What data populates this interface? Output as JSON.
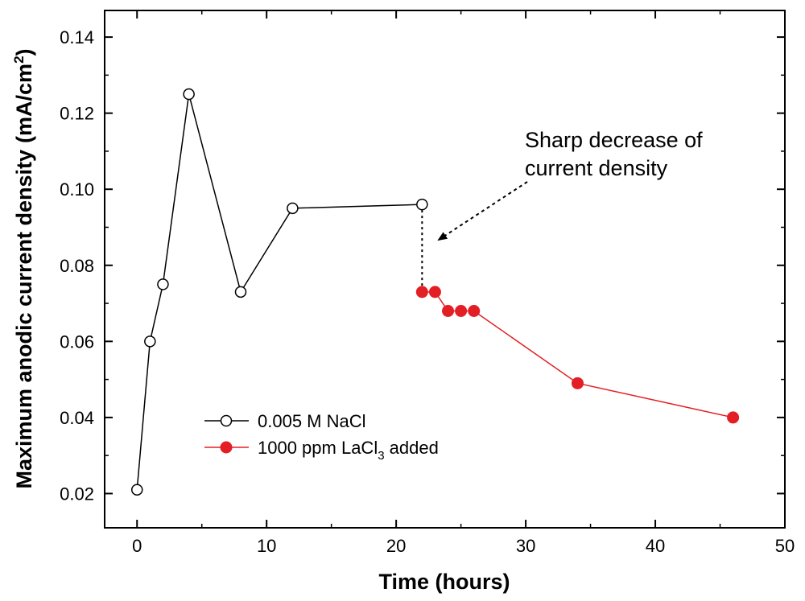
{
  "chart_data": {
    "type": "line",
    "xlabel": "Time (hours)",
    "ylabel": "Maximum anodic current density",
    "ylabel_unit_prefix": "(mA/cm",
    "ylabel_unit_sup": "2",
    "ylabel_unit_suffix": ")",
    "xlim": [
      -2.5,
      50
    ],
    "ylim": [
      0.011,
      0.147
    ],
    "x_ticks": [
      0,
      10,
      20,
      30,
      40,
      50
    ],
    "x_tick_labels": [
      "0",
      "10",
      "20",
      "30",
      "40",
      "50"
    ],
    "y_ticks": [
      0.02,
      0.04,
      0.06,
      0.08,
      0.1,
      0.12,
      0.14
    ],
    "y_tick_labels": [
      "0.02",
      "0.04",
      "0.06",
      "0.08",
      "0.10",
      "0.12",
      "0.14"
    ],
    "series": [
      {
        "name": "0.005 M NaCl",
        "marker": "open-circle",
        "color": "#000000",
        "x": [
          0,
          1,
          2,
          4,
          8,
          12,
          22
        ],
        "y": [
          0.021,
          0.06,
          0.075,
          0.125,
          0.073,
          0.095,
          0.096
        ]
      },
      {
        "name": "1000 ppm LaCl3 added",
        "legend_prefix": "1000 ppm LaCl",
        "legend_sub": "3",
        "legend_suffix": " added",
        "marker": "filled-circle",
        "color": "#e31e24",
        "x": [
          22,
          23,
          24,
          25,
          26,
          34,
          46
        ],
        "y": [
          0.073,
          0.073,
          0.068,
          0.068,
          0.068,
          0.049,
          0.04
        ]
      }
    ],
    "connector": {
      "x": [
        22,
        22
      ],
      "y": [
        0.096,
        0.073
      ],
      "style": "dotted"
    },
    "annotation": {
      "lines": [
        "Sharp decrease of",
        "current density"
      ],
      "arrow_to": {
        "x": 22.3,
        "y": 0.085
      },
      "style": "dotted-arrow"
    },
    "legend_position": "lower-left"
  }
}
